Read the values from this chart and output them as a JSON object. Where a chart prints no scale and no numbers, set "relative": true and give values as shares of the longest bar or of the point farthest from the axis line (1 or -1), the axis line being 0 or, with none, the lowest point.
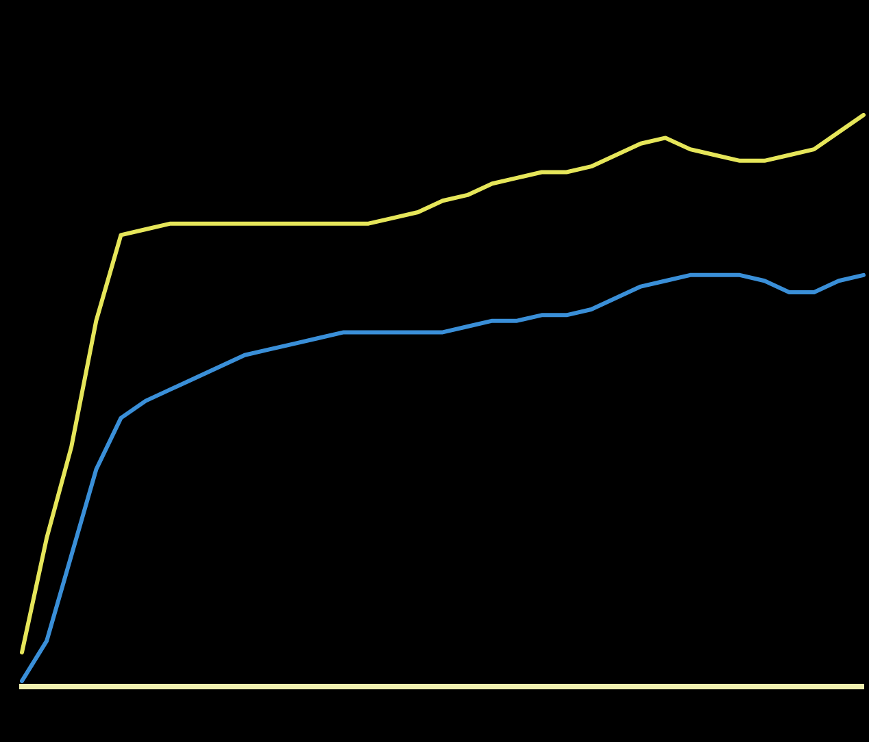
{
  "chart_data": {
    "type": "line",
    "relative": true,
    "line_style": "solid",
    "categories": [
      null,
      null,
      null,
      null,
      null,
      null,
      null,
      null,
      null,
      null,
      null,
      null,
      null,
      null,
      null,
      null,
      null,
      null,
      null,
      null,
      null,
      null,
      null,
      null,
      null,
      null,
      null,
      null,
      null,
      null,
      null,
      null,
      null,
      null,
      null
    ],
    "series": [
      {
        "color": "#e6e65a",
        "values": [
          0.06,
          0.26,
          0.42,
          0.64,
          0.79,
          0.8,
          0.81,
          0.81,
          0.81,
          0.81,
          0.81,
          0.81,
          0.81,
          0.81,
          0.81,
          0.82,
          0.83,
          0.85,
          0.86,
          0.88,
          0.89,
          0.9,
          0.9,
          0.91,
          0.93,
          0.95,
          0.96,
          0.94,
          0.93,
          0.92,
          0.92,
          0.93,
          0.94,
          0.97,
          1.0
        ]
      },
      {
        "color": "#3a8fd8",
        "values": [
          0.01,
          0.08,
          0.23,
          0.38,
          0.47,
          0.5,
          0.52,
          0.54,
          0.56,
          0.58,
          0.59,
          0.6,
          0.61,
          0.62,
          0.62,
          0.62,
          0.62,
          0.62,
          0.63,
          0.64,
          0.64,
          0.65,
          0.65,
          0.66,
          0.68,
          0.7,
          0.71,
          0.72,
          0.72,
          0.72,
          0.71,
          0.69,
          0.69,
          0.71,
          0.72
        ]
      }
    ]
  }
}
